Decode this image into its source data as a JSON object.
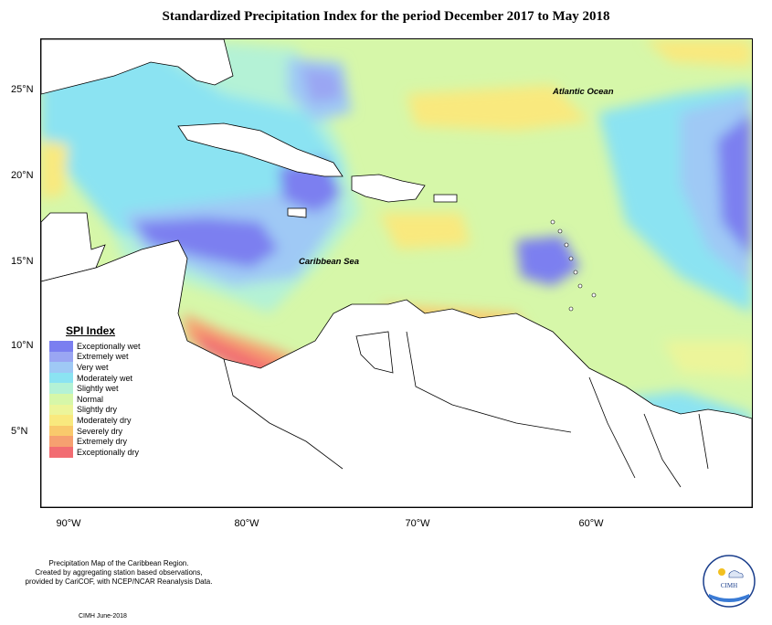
{
  "title": "Standardized Precipitation Index for the period December 2017 to May 2018",
  "map": {
    "ocean_labels": [
      "Atlantic Ocean",
      "Caribbean Sea"
    ],
    "lat_ticks": [
      "25°N",
      "20°N",
      "15°N",
      "10°N",
      "5°N"
    ],
    "lon_ticks": [
      "90°W",
      "80°W",
      "70°W",
      "60°W"
    ],
    "land_color": "#ffffff",
    "coast_color": "#000000"
  },
  "legend": {
    "title": "SPI Index",
    "items": [
      {
        "label": "Exceptionally wet",
        "color": "#7b7ff0"
      },
      {
        "label": "Extremely wet",
        "color": "#9aa6f3"
      },
      {
        "label": "Very wet",
        "color": "#9fc9f5"
      },
      {
        "label": "Moderately wet",
        "color": "#8be3f2"
      },
      {
        "label": "Slightly wet",
        "color": "#b4f2d6"
      },
      {
        "label": "Normal",
        "color": "#d6f7a9"
      },
      {
        "label": "Slightly dry",
        "color": "#ecf59a"
      },
      {
        "label": "Moderately dry",
        "color": "#f9e97e"
      },
      {
        "label": "Severely dry",
        "color": "#f9c96c"
      },
      {
        "label": "Extremely dry",
        "color": "#f6a070"
      },
      {
        "label": "Exceptionally dry",
        "color": "#f26c72"
      }
    ]
  },
  "footnote": {
    "lines": [
      "Precipitation Map of the Caribbean Region.",
      "Created by aggregating station based observations,",
      "provided by CariCOF, with NCEP/NCAR Reanalysis Data."
    ],
    "credit": "CIMH June-2018"
  },
  "logo": {
    "text": "CIMH"
  }
}
